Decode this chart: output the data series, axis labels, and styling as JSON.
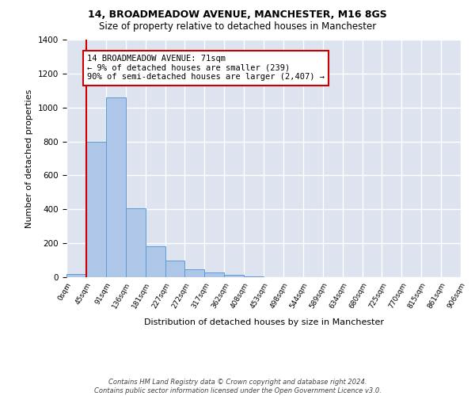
{
  "title1": "14, BROADMEADOW AVENUE, MANCHESTER, M16 8GS",
  "title2": "Size of property relative to detached houses in Manchester",
  "xlabel": "Distribution of detached houses by size in Manchester",
  "ylabel": "Number of detached properties",
  "bin_labels": [
    "0sqm",
    "45sqm",
    "91sqm",
    "136sqm",
    "181sqm",
    "227sqm",
    "272sqm",
    "317sqm",
    "362sqm",
    "408sqm",
    "453sqm",
    "498sqm",
    "544sqm",
    "589sqm",
    "634sqm",
    "680sqm",
    "725sqm",
    "770sqm",
    "815sqm",
    "861sqm",
    "906sqm"
  ],
  "bar_values": [
    20,
    800,
    1060,
    405,
    180,
    100,
    47,
    30,
    15,
    7,
    0,
    0,
    0,
    0,
    0,
    0,
    0,
    0,
    0,
    0
  ],
  "bar_color": "#aec6e8",
  "bar_edge_color": "#5b9bd5",
  "vline_x": 1,
  "vline_color": "#cc0000",
  "annotation_text": "14 BROADMEADOW AVENUE: 71sqm\n← 9% of detached houses are smaller (239)\n90% of semi-detached houses are larger (2,407) →",
  "annotation_box_color": "#ffffff",
  "annotation_box_edge": "#cc0000",
  "footer_text": "Contains HM Land Registry data © Crown copyright and database right 2024.\nContains public sector information licensed under the Open Government Licence v3.0.",
  "ylim": [
    0,
    1400
  ],
  "yticks": [
    0,
    200,
    400,
    600,
    800,
    1000,
    1200,
    1400
  ],
  "background_color": "#dde4f0",
  "grid_color": "#ffffff",
  "figsize": [
    6.0,
    5.0
  ],
  "dpi": 100
}
